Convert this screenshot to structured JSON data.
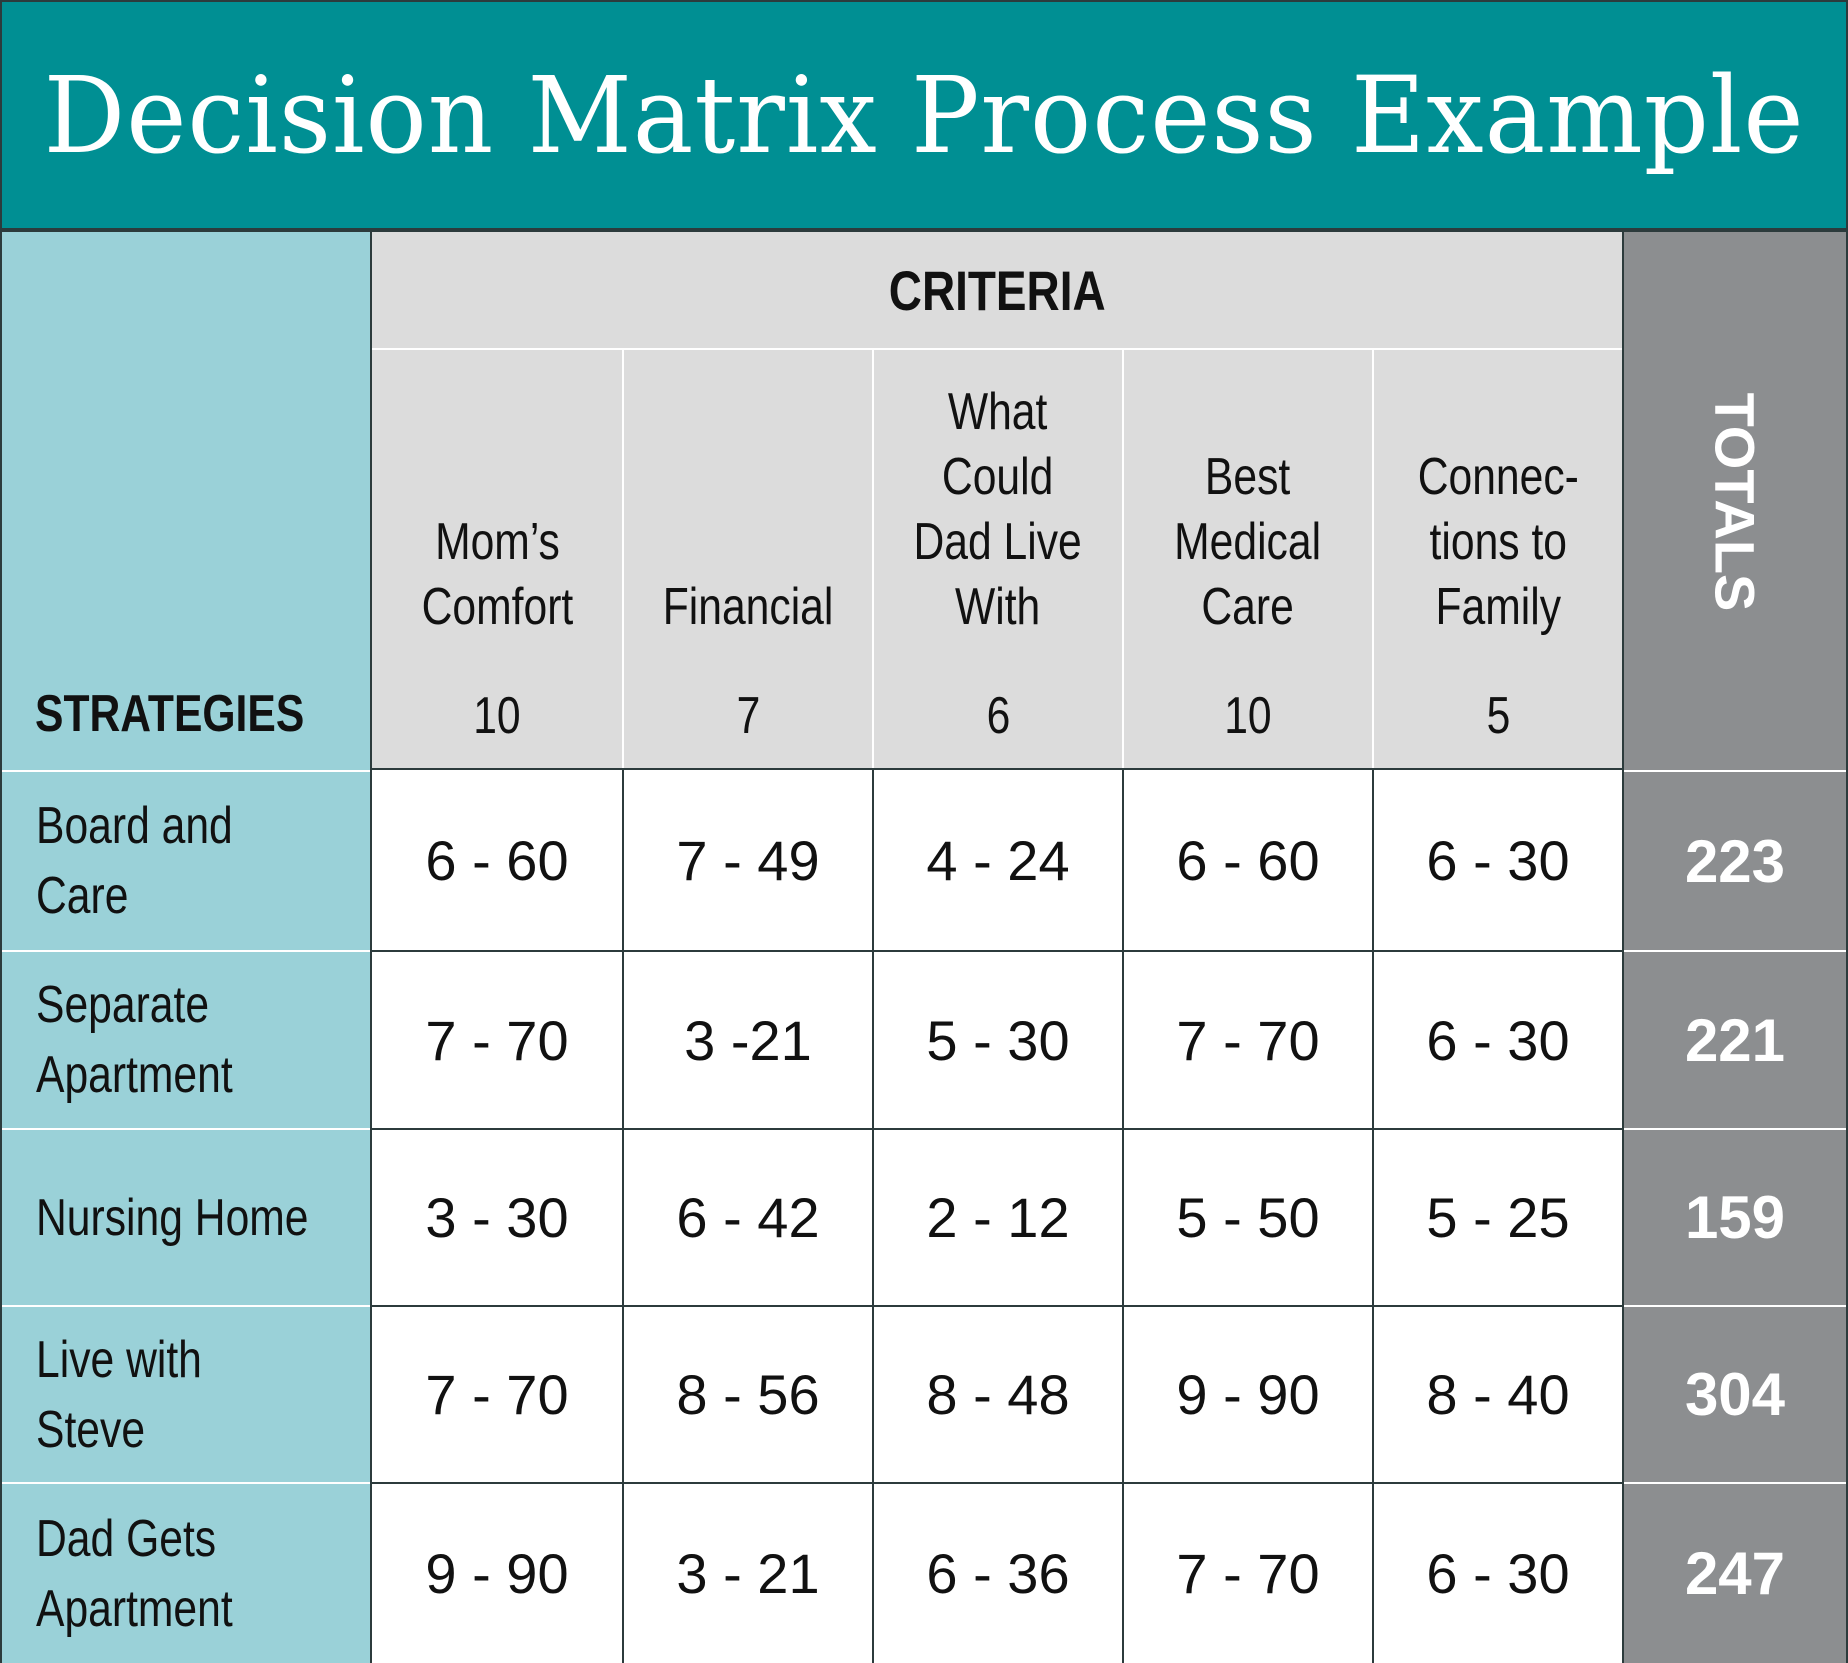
{
  "title": "Decision Matrix Process Example",
  "strategies_header": "STRATEGIES",
  "criteria_header": "CRITERIA",
  "totals_header": "TOTALS",
  "criteria": [
    {
      "name": "Mom’s\nComfort",
      "weight": "10"
    },
    {
      "name": "Financial",
      "weight": "7"
    },
    {
      "name": "What\nCould\nDad Live\nWith",
      "weight": "6"
    },
    {
      "name": "Best\nMedical\nCare",
      "weight": "10"
    },
    {
      "name": "Connec-\ntions to\nFamily",
      "weight": "5"
    }
  ],
  "rows": [
    {
      "strategy": "Board and Care",
      "scores": [
        "6 - 60",
        "7 - 49",
        "4 - 24",
        "6 - 60",
        "6 - 30"
      ],
      "total": "223"
    },
    {
      "strategy": "Separate Apartment",
      "scores": [
        "7 - 70",
        "3 -21",
        "5 - 30",
        "7 - 70",
        "6 - 30"
      ],
      "total": "221"
    },
    {
      "strategy": "Nursing Home",
      "scores": [
        "3 - 30",
        "6 - 42",
        "2 - 12",
        "5 - 50",
        "5 - 25"
      ],
      "total": "159"
    },
    {
      "strategy": "Live with Steve",
      "scores": [
        "7 - 70",
        "8 - 56",
        "8 - 48",
        "9 - 90",
        "8 - 40"
      ],
      "total": "304"
    },
    {
      "strategy": "Dad Gets Apartment",
      "scores": [
        "9 - 90",
        "3 - 21",
        "6 - 36",
        "7 - 70",
        "6 - 30"
      ],
      "total": "247"
    }
  ],
  "colors": {
    "title_bar": "#008f93",
    "strategy_column": "#9ad1d8",
    "criteria_header": "#dcdcdc",
    "totals_column": "#8c8e90"
  }
}
